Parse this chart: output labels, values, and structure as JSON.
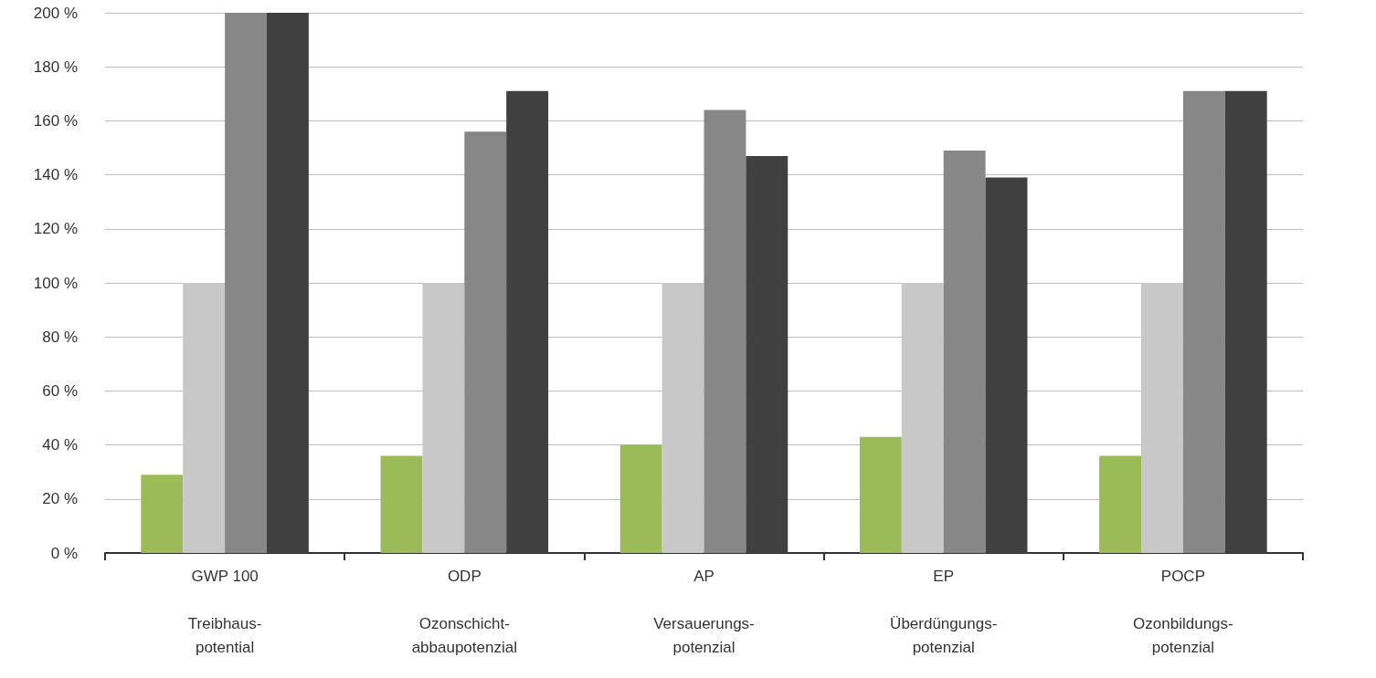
{
  "chart_data": {
    "type": "bar",
    "categories": [
      "GWP 100\n\nTreibhaus-\npotential",
      "ODP\n\nOzonschicht-\nabbaupotenzial",
      "AP\n\nVersauerungs-\npotenzial",
      "EP\n\nÜberdüngungs-\npotenzial",
      "POCP\n\nOzonbildungs-\npotenzial"
    ],
    "series": [
      {
        "color": "#9bbb59",
        "values": [
          29,
          36,
          40,
          43,
          36
        ]
      },
      {
        "color": "#c8c8c8",
        "values": [
          100,
          100,
          100,
          100,
          100
        ]
      },
      {
        "color": "#878787",
        "values": [
          200,
          156,
          164,
          149,
          171
        ]
      },
      {
        "color": "#404040",
        "values": [
          200,
          171,
          147,
          139,
          171
        ]
      }
    ],
    "ylim": [
      0,
      200
    ],
    "yticks": [
      {
        "value": 0,
        "label": "0 %"
      },
      {
        "value": 20,
        "label": "20 %"
      },
      {
        "value": 40,
        "label": "40 %"
      },
      {
        "value": 60,
        "label": "60 %"
      },
      {
        "value": 80,
        "label": "80 %"
      },
      {
        "value": 100,
        "label": "100 %"
      },
      {
        "value": 120,
        "label": "120 %"
      },
      {
        "value": 140,
        "label": "140 %"
      },
      {
        "value": 160,
        "label": "160 %"
      },
      {
        "value": 180,
        "label": "180 %"
      },
      {
        "value": 200,
        "label": "200 %"
      }
    ],
    "grid": "y"
  }
}
